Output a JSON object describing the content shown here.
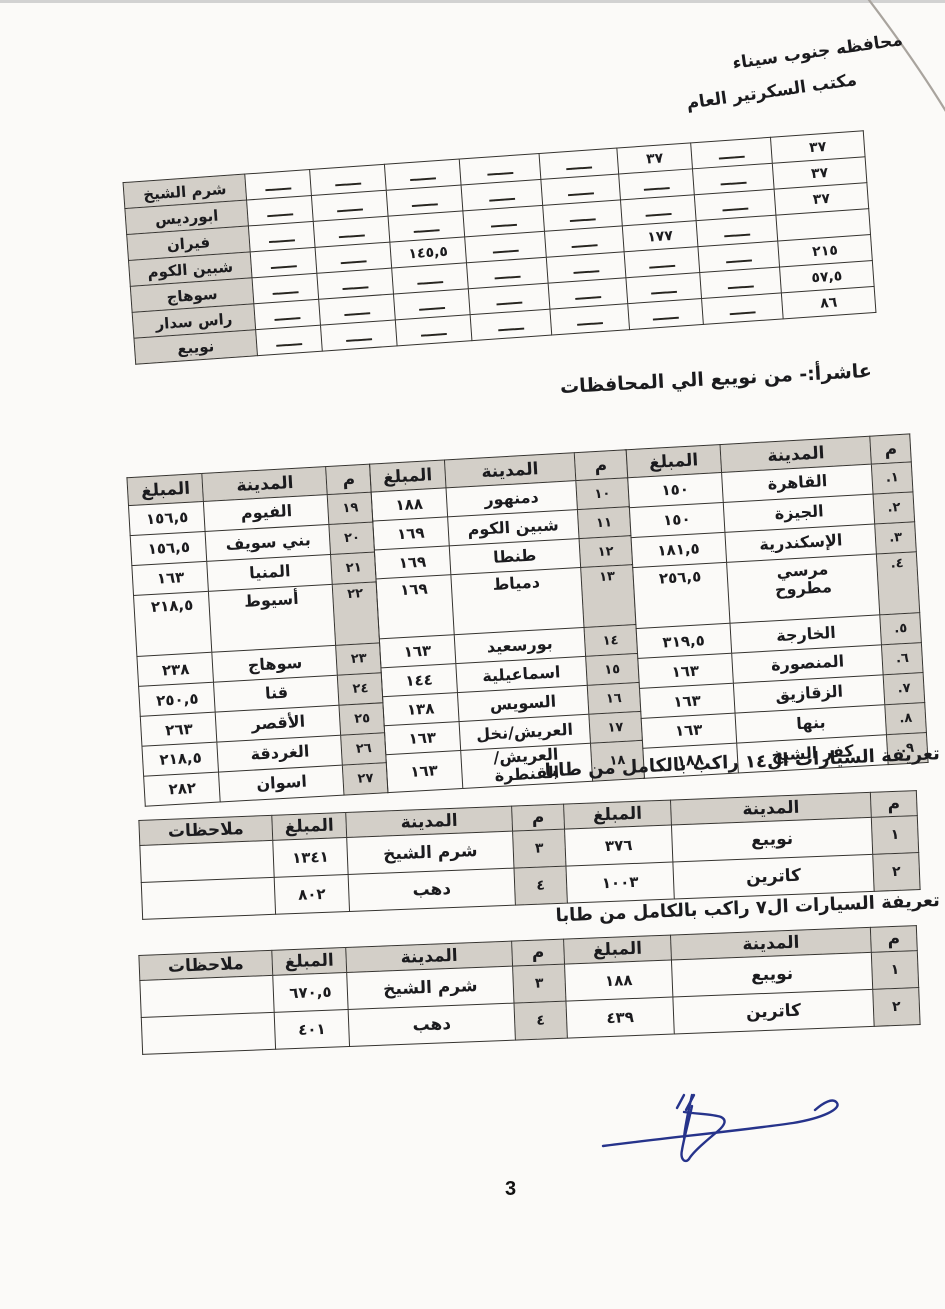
{
  "header": {
    "line1": "محافظه جنوب سيناء",
    "line2": "مكتب السكرتير العام"
  },
  "section_title": "عاشرأ:- من نويبع الي المحافظات",
  "caption_14": "تعريفة السيارات ال١٤ راكب بالكامل من طابا",
  "caption_7": "تعريفة السيارات ال٧ راكب بالكامل من طابا",
  "labels": {
    "num": "م",
    "city": "المدينة",
    "amount": "المبلغ",
    "notes": "ملاحظات"
  },
  "dash": "ـــــ",
  "top_table": {
    "rows": [
      {
        "name": "شرم الشيخ",
        "cells": [
          "ـــــ",
          "ـــــ",
          "ـــــ",
          "ـــــ",
          "ـــــ",
          "٣٧",
          "ـــــ",
          "٣٧"
        ]
      },
      {
        "name": "ابورديس",
        "cells": [
          "ـــــ",
          "ـــــ",
          "ـــــ",
          "ـــــ",
          "ـــــ",
          "ـــــ",
          "ـــــ",
          "٣٧"
        ]
      },
      {
        "name": "فيران",
        "cells": [
          "ـــــ",
          "ـــــ",
          "ـــــ",
          "ـــــ",
          "ـــــ",
          "ـــــ",
          "ـــــ",
          "٣٧"
        ]
      },
      {
        "name": "شبين الكوم",
        "cells": [
          "ـــــ",
          "ـــــ",
          "١٤٥,٥",
          "ـــــ",
          "ـــــ",
          "١٧٧",
          "ـــــ",
          ""
        ]
      },
      {
        "name": "سوهاج",
        "cells": [
          "ـــــ",
          "ـــــ",
          "ـــــ",
          "ـــــ",
          "ـــــ",
          "ـــــ",
          "ـــــ",
          "٢١٥"
        ]
      },
      {
        "name": "راس سدار",
        "cells": [
          "ـــــ",
          "ـــــ",
          "ـــــ",
          "ـــــ",
          "ـــــ",
          "ـــــ",
          "ـــــ",
          "٥٧,٥"
        ]
      },
      {
        "name": "نويبع",
        "cells": [
          "ـــــ",
          "ـــــ",
          "ـــــ",
          "ـــــ",
          "ـــــ",
          "ـــــ",
          "ـــــ",
          "٨٦"
        ]
      }
    ]
  },
  "main_table": {
    "groups": [
      [
        [
          "١.",
          "القاهرة",
          "١٥٠"
        ],
        [
          "٢.",
          "الجيزة",
          "١٥٠"
        ],
        [
          "٣.",
          "الإسكندرية",
          "١٨١,٥"
        ],
        [
          "٤.",
          "مرسي\nمطروح",
          "٢٥٦,٥"
        ],
        [
          "٥.",
          "الخارجة",
          "٣١٩,٥"
        ],
        [
          "٦.",
          "المنصورة",
          "١٦٣"
        ],
        [
          "٧.",
          "الزقازيق",
          "١٦٣"
        ],
        [
          "٨.",
          "بنها",
          "١٦٣"
        ],
        [
          "٩.",
          "كفر الشيخ",
          "١٨٨"
        ]
      ],
      [
        [
          "١٠",
          "دمنهور",
          "١٨٨"
        ],
        [
          "١١",
          "شبين الكوم",
          "١٦٩"
        ],
        [
          "١٢",
          "طنطا",
          "١٦٩"
        ],
        [
          "١٣",
          "دمياط",
          "١٦٩"
        ],
        [
          "١٤",
          "بورسعيد",
          "١٦٣"
        ],
        [
          "١٥",
          "اسماعيلية",
          "١٤٤"
        ],
        [
          "١٦",
          "السويس",
          "١٣٨"
        ],
        [
          "١٧",
          "العريش/نخل",
          "١٦٣"
        ],
        [
          "١٨",
          "العريش/القنطرة",
          "١٦٣"
        ]
      ],
      [
        [
          "١٩",
          "الفيوم",
          "١٥٦,٥"
        ],
        [
          "٢٠",
          "بني سويف",
          "١٥٦,٥"
        ],
        [
          "٢١",
          "المنيا",
          "١٦٣"
        ],
        [
          "٢٢",
          "أسيوط",
          "٢١٨,٥"
        ],
        [
          "٢٣",
          "سوهاج",
          "٢٣٨"
        ],
        [
          "٢٤",
          "قنا",
          "٢٥٠,٥"
        ],
        [
          "٢٥",
          "الأقصر",
          "٢٦٣"
        ],
        [
          "٢٦",
          "الغردقة",
          "٢١٨,٥"
        ],
        [
          "٢٧",
          "اسوان",
          "٢٨٢"
        ]
      ]
    ]
  },
  "table_14": {
    "rows": [
      [
        "١",
        "نويبع",
        "٣٧٦",
        "٣",
        "شرم الشيخ",
        "١٣٤١",
        ""
      ],
      [
        "٢",
        "كاترين",
        "١٠٠٣",
        "٤",
        "دهب",
        "٨٠٢",
        ""
      ]
    ]
  },
  "table_7": {
    "rows": [
      [
        "١",
        "نويبع",
        "١٨٨",
        "٣",
        "شرم الشيخ",
        "٦٧٠,٥",
        ""
      ],
      [
        "٢",
        "كاترين",
        "٤٣٩",
        "٤",
        "دهب",
        "٤٠١",
        ""
      ]
    ]
  },
  "page": {
    "number": "3"
  },
  "colors": {
    "ink": "#1b1b1e",
    "shade": "#d3cfc8",
    "signature": "#26338b",
    "paper": "#fbfaf8"
  }
}
